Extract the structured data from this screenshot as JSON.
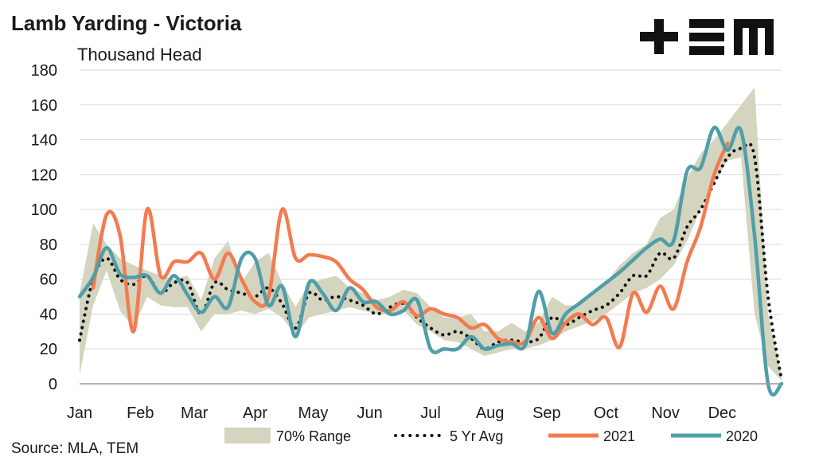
{
  "header": {
    "title": "Lamb Yarding - Victoria",
    "subtitle": "Thousand Head",
    "source": "Source: MLA, TEM"
  },
  "logo": {
    "icon": "tem-logo-icon",
    "color": "#111111"
  },
  "colors": {
    "range": "#d4d4bf",
    "avg": "#111111",
    "s2021": "#f37b4f",
    "s2020": "#4f9ea8",
    "grid": "#d9d9d9",
    "axis": "#999999"
  },
  "chart_data": {
    "type": "line",
    "title": "Lamb Yarding - Victoria",
    "ylabel": "Thousand Head",
    "xlabel": "",
    "ylim": [
      0,
      180
    ],
    "y_ticks": [
      0,
      20,
      40,
      60,
      80,
      100,
      120,
      140,
      160,
      180
    ],
    "x_range": [
      1,
      53
    ],
    "month_ticks": [
      {
        "label": "Jan",
        "week": 1
      },
      {
        "label": "Feb",
        "week": 5.5
      },
      {
        "label": "Mar",
        "week": 9.5
      },
      {
        "label": "Apr",
        "week": 14
      },
      {
        "label": "May",
        "week": 18.3
      },
      {
        "label": "Jun",
        "week": 22.5
      },
      {
        "label": "Jul",
        "week": 27
      },
      {
        "label": "Aug",
        "week": 31.4
      },
      {
        "label": "Sep",
        "week": 35.6
      },
      {
        "label": "Oct",
        "week": 40
      },
      {
        "label": "Nov",
        "week": 44.4
      },
      {
        "label": "Dec",
        "week": 48.6
      }
    ],
    "grid": true,
    "legend_position": "bottom",
    "series": [
      {
        "name": "70% Range",
        "kind": "band",
        "x": [
          1,
          2,
          3,
          4,
          5,
          6,
          7,
          8,
          9,
          10,
          11,
          12,
          13,
          14,
          15,
          16,
          17,
          18,
          19,
          20,
          21,
          22,
          23,
          24,
          25,
          26,
          27,
          28,
          29,
          30,
          31,
          32,
          33,
          34,
          35,
          36,
          37,
          38,
          39,
          40,
          41,
          42,
          43,
          44,
          45,
          46,
          47,
          48,
          49,
          50,
          51,
          52,
          53
        ],
        "low": [
          5,
          45,
          65,
          42,
          32,
          50,
          45,
          44,
          44,
          30,
          40,
          40,
          42,
          40,
          43,
          38,
          28,
          38,
          40,
          42,
          44,
          42,
          40,
          40,
          42,
          34,
          30,
          25,
          24,
          20,
          16,
          18,
          20,
          20,
          22,
          25,
          30,
          33,
          36,
          40,
          46,
          52,
          55,
          60,
          68,
          82,
          100,
          115,
          128,
          130,
          40,
          10,
          2
        ],
        "high": [
          52,
          92,
          80,
          72,
          68,
          65,
          62,
          60,
          62,
          48,
          72,
          82,
          58,
          70,
          75,
          58,
          44,
          58,
          60,
          62,
          55,
          52,
          48,
          50,
          54,
          52,
          44,
          38,
          38,
          40,
          30,
          30,
          35,
          30,
          35,
          50,
          45,
          45,
          52,
          58,
          68,
          75,
          80,
          95,
          100,
          118,
          132,
          140,
          150,
          160,
          170,
          40,
          5
        ]
      },
      {
        "name": "5 Yr Avg",
        "kind": "dotted",
        "x": [
          1,
          2,
          3,
          4,
          5,
          6,
          7,
          8,
          9,
          10,
          11,
          12,
          13,
          14,
          15,
          16,
          17,
          18,
          19,
          20,
          21,
          22,
          23,
          24,
          25,
          26,
          27,
          28,
          29,
          30,
          31,
          32,
          33,
          34,
          35,
          36,
          37,
          38,
          39,
          40,
          41,
          42,
          43,
          44,
          45,
          46,
          47,
          48,
          49,
          50,
          51,
          52,
          53
        ],
        "values": [
          25,
          60,
          72,
          60,
          57,
          62,
          52,
          58,
          58,
          40,
          58,
          54,
          52,
          50,
          55,
          46,
          32,
          52,
          48,
          50,
          48,
          45,
          40,
          44,
          46,
          38,
          32,
          28,
          30,
          26,
          20,
          24,
          25,
          24,
          26,
          38,
          34,
          38,
          42,
          45,
          52,
          62,
          62,
          75,
          72,
          90,
          100,
          115,
          130,
          135,
          130,
          50,
          2
        ]
      },
      {
        "name": "2021",
        "kind": "line",
        "x": [
          2,
          3,
          4,
          5,
          6,
          7,
          8,
          9,
          10,
          11,
          12,
          13,
          14,
          15,
          16,
          17,
          18,
          19,
          20,
          21,
          22,
          23,
          24,
          25,
          26,
          27,
          28,
          29,
          30,
          31,
          32,
          33,
          34,
          35,
          36,
          37,
          38,
          39,
          40,
          41,
          42,
          43,
          44,
          45,
          46,
          47,
          48,
          49
        ],
        "values": [
          55,
          97,
          85,
          30,
          100,
          62,
          70,
          70,
          75,
          60,
          75,
          60,
          47,
          50,
          100,
          72,
          74,
          73,
          70,
          60,
          54,
          44,
          42,
          47,
          39,
          43,
          40,
          38,
          32,
          34,
          26,
          24,
          24,
          38,
          26,
          35,
          40,
          34,
          38,
          21,
          52,
          41,
          56,
          43,
          70,
          90,
          120,
          138
        ]
      },
      {
        "name": "2020",
        "kind": "line",
        "x": [
          1,
          2,
          3,
          4,
          5,
          6,
          7,
          8,
          9,
          10,
          11,
          12,
          13,
          14,
          15,
          16,
          17,
          18,
          19,
          20,
          21,
          22,
          23,
          24,
          25,
          26,
          27,
          28,
          29,
          30,
          31,
          32,
          33,
          34,
          35,
          36,
          37,
          38,
          39,
          40,
          41,
          42,
          43,
          44,
          45,
          46,
          47,
          48,
          49,
          50,
          51,
          52,
          53
        ],
        "values": [
          50,
          61,
          78,
          63,
          61,
          62,
          52,
          62,
          51,
          41,
          50,
          44,
          72,
          72,
          45,
          56,
          27,
          58,
          52,
          42,
          55,
          47,
          47,
          40,
          42,
          48,
          20,
          20,
          20,
          27,
          20,
          22,
          23,
          22,
          53,
          29,
          40,
          46,
          52,
          58,
          64,
          71,
          78,
          83,
          82,
          122,
          124,
          147,
          134,
          145,
          85,
          0,
          0
        ]
      }
    ],
    "legend": [
      "70% Range",
      "5 Yr Avg",
      "2021",
      "2020"
    ]
  }
}
